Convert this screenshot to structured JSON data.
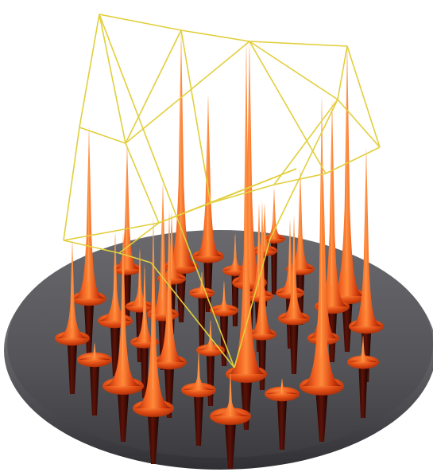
{
  "scene": {
    "colors": {
      "background": "#ffffff",
      "disc_top": "#5f5f63",
      "disc_edge": "#3c3c40",
      "spike_light": "#ff7a2a",
      "spike_mid": "#e84a10",
      "spike_dark": "#8e1d05",
      "underside": "#3a0a05",
      "link_line": "#e8d23a"
    }
  }
}
